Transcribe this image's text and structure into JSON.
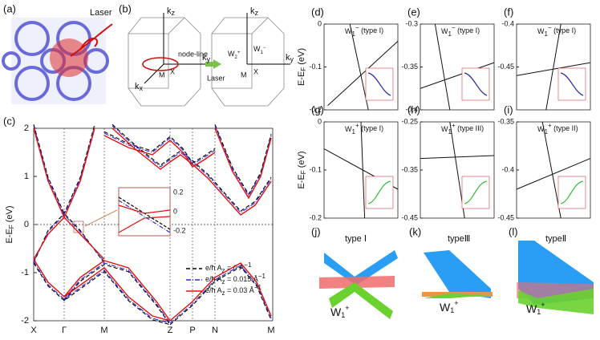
{
  "panels": {
    "a": {
      "label": "(a)",
      "laser": "Laser"
    },
    "b": {
      "label": "(b)",
      "kz": [
        "k",
        "z"
      ],
      "ky": [
        "k",
        "y"
      ],
      "kx": [
        "k",
        "x"
      ],
      "node_line": "node-line",
      "M": "M",
      "X": "X",
      "laser": "Laser",
      "w_left": [
        "W",
        "2",
        "+"
      ],
      "w_right": [
        "W",
        "1",
        "−"
      ]
    },
    "j": {
      "label": "(j)",
      "type": "type Ⅰ",
      "w": [
        "W",
        "1",
        "+"
      ]
    },
    "k": {
      "label": "(k)",
      "type": "typeⅢ",
      "w": [
        "W",
        "1",
        "+"
      ]
    },
    "l": {
      "label": "(l)",
      "type": "typeⅡ",
      "w": [
        "W",
        "1",
        "+"
      ]
    }
  },
  "chart_data": [
    {
      "type": "line",
      "label": "(c)",
      "ylabel": [
        "E-E",
        "F",
        " (eV)"
      ],
      "categories": [
        "X",
        "Γ",
        "M",
        "Z",
        "P",
        "N",
        "M"
      ],
      "ylim": [
        -2,
        2
      ],
      "yticks": [
        -2,
        -1,
        0,
        1,
        2
      ],
      "series": [
        {
          "name": [
            "e/ħ ",
            "A",
            "z",
            " = 0 Å",
            "−1"
          ],
          "color": "#000000"
        },
        {
          "name": [
            "e/ħ ",
            "A",
            "z",
            " = 0.015 Å",
            "−1"
          ],
          "color": "#2b2bd0"
        },
        {
          "name": [
            "e/ħ ",
            "A",
            "z",
            " = 0.03 Å",
            "−1"
          ],
          "color": "#e01010"
        }
      ],
      "inset_yticks": [
        0.2,
        0,
        -0.2
      ]
    },
    {
      "type": "line",
      "label": "(d)",
      "title": [
        "W",
        "1",
        "−",
        " (type I)"
      ],
      "ylabel": [
        "E-E",
        "F",
        " (eV)"
      ],
      "ylim": [
        0,
        -0.2
      ],
      "yticks": [
        0,
        -0.1,
        -0.2
      ]
    },
    {
      "type": "line",
      "label": "(e)",
      "title": [
        "W",
        "1",
        "−",
        " (type I)"
      ],
      "ylim": [
        -0.3,
        -0.4
      ],
      "yticks": [
        -0.3,
        -0.35,
        -0.4
      ]
    },
    {
      "type": "line",
      "label": "(f)",
      "title": [
        "W",
        "1",
        "−",
        " (type I)"
      ],
      "ylim": [
        -0.4,
        -0.5
      ],
      "yticks": [
        -0.4,
        -0.45
      ]
    },
    {
      "type": "line",
      "label": "(g)",
      "title": [
        "W",
        "1",
        "+",
        " (type I)"
      ],
      "ylabel": [
        "E-E",
        "F",
        " (eV)"
      ],
      "ylim": [
        0,
        -0.2
      ],
      "yticks": [
        0,
        -0.1,
        -0.2
      ]
    },
    {
      "type": "line",
      "label": "(h)",
      "title": [
        "W",
        "1",
        "+",
        " (type III)"
      ],
      "title_color": "#2b2bd0",
      "ylim": [
        -0.25,
        -0.45
      ],
      "yticks": [
        -0.25,
        -0.35,
        -0.45
      ]
    },
    {
      "type": "line",
      "label": "(i)",
      "title": [
        "W",
        "1",
        "+",
        " (type II)"
      ],
      "title_color": "#2b2bd0",
      "ylim": [
        -0.35,
        -0.45
      ],
      "yticks": [
        -0.35,
        -0.4,
        -0.45
      ]
    }
  ]
}
